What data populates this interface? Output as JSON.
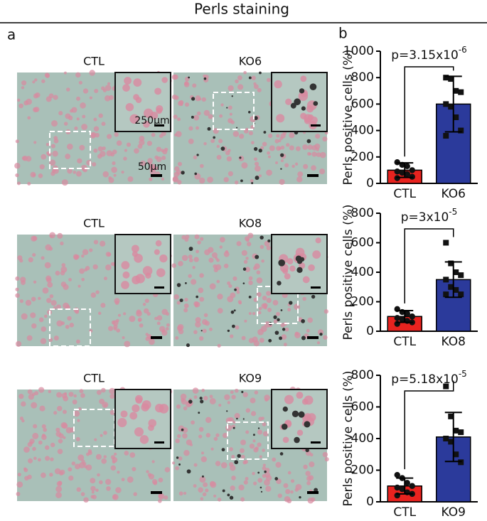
{
  "title": "Perls staining",
  "label_a": "a",
  "label_b": "b",
  "images": [
    {
      "label": "CTL"
    },
    {
      "label": "KO6"
    },
    {
      "label": "CTL"
    },
    {
      "label": "KO8"
    },
    {
      "label": "CTL"
    },
    {
      "label": "KO9"
    }
  ],
  "scale_labels": [
    "250μm",
    "50μm"
  ],
  "chart_data": [
    {
      "type": "bar",
      "ylabel": "Perls positive cells (%)",
      "categories": [
        "CTL",
        "KO6"
      ],
      "values": [
        100,
        600
      ],
      "errors": [
        55,
        210
      ],
      "colors": [
        "#e8231f",
        "#2b3a9b"
      ],
      "markers": [
        "circle",
        "square"
      ],
      "points": [
        [
          160,
          140,
          130,
          100,
          90,
          80,
          70,
          50,
          40
        ],
        [
          800,
          790,
          700,
          690,
          600,
          580,
          500,
          400,
          360
        ]
      ],
      "annotation": {
        "base": "p=3.15x10",
        "exponent": "-6"
      },
      "ylim": [
        0,
        1000
      ],
      "yticks": [
        0,
        200,
        400,
        600,
        800,
        1000
      ]
    },
    {
      "type": "bar",
      "ylabel": "Perls positive cells (%)",
      "categories": [
        "CTL",
        "KO8"
      ],
      "values": [
        100,
        350
      ],
      "errors": [
        40,
        120
      ],
      "colors": [
        "#e8231f",
        "#2b3a9b"
      ],
      "markers": [
        "circle",
        "square"
      ],
      "points": [
        [
          150,
          130,
          120,
          100,
          90,
          80,
          70,
          60,
          50
        ],
        [
          600,
          460,
          400,
          380,
          350,
          300,
          280,
          250,
          250
        ]
      ],
      "annotation": {
        "base": "p=3x10",
        "exponent": "-5"
      },
      "ylim": [
        0,
        800
      ],
      "yticks": [
        0,
        200,
        400,
        600,
        800
      ]
    },
    {
      "type": "bar",
      "ylabel": "Perls positive cells (%)",
      "categories": [
        "CTL",
        "KO9"
      ],
      "values": [
        100,
        410
      ],
      "errors": [
        50,
        155
      ],
      "colors": [
        "#e8231f",
        "#2b3a9b"
      ],
      "markers": [
        "circle",
        "square"
      ],
      "points": [
        [
          170,
          150,
          120,
          100,
          90,
          80,
          60,
          50,
          40
        ],
        [
          730,
          540,
          450,
          440,
          400,
          380,
          300,
          250
        ]
      ],
      "annotation": {
        "base": "p=5.18x10",
        "exponent": "-5"
      },
      "ylim": [
        0,
        800
      ],
      "yticks": [
        0,
        200,
        400,
        600,
        800
      ]
    }
  ]
}
